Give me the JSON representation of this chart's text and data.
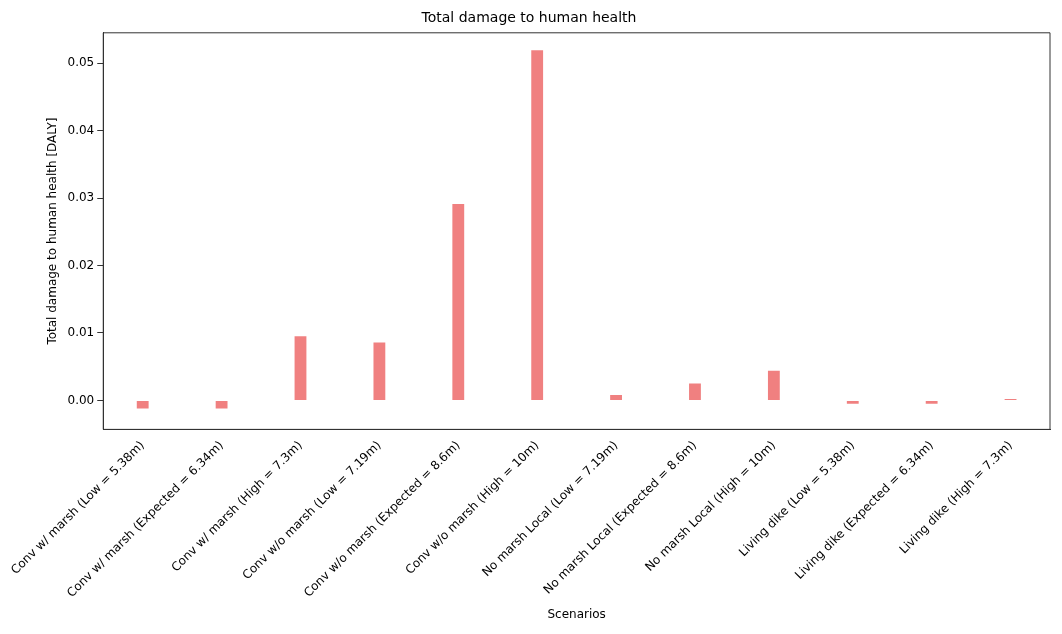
{
  "chart_data": {
    "type": "bar",
    "title": "Total damage to human health",
    "xlabel": "Scenarios",
    "ylabel": "Total damage to human health [DALY]",
    "categories": [
      "Conv w/ marsh (Low = 5.38m)",
      "Conv w/ marsh (Expected = 6.34m)",
      "Conv w/ marsh (High = 7.3m)",
      "Conv w/o marsh (Low = 7.19m)",
      "Conv w/o marsh (Expected = 8.6m)",
      "Conv w/o marsh (High = 10m)",
      "No marsh Local (Low = 7.19m)",
      "No marsh Local (Expected = 8.6m)",
      "No marsh Local (High = 10m)",
      "Living dike (Low = 5.38m)",
      "Living dike (Expected = 6.34m)",
      "Living dike (High = 7.3m)"
    ],
    "values": [
      -0.0012,
      -0.0012,
      0.0095,
      0.0086,
      0.0291,
      0.0519,
      0.0008,
      0.0025,
      0.0044,
      -0.0005,
      -0.0005,
      0.0002
    ],
    "color": "#f08080",
    "ylim": [
      -0.0043,
      0.0545
    ],
    "yticks": [
      {
        "value": 0,
        "label": "0.00"
      },
      {
        "value": 0.01,
        "label": "0.01"
      },
      {
        "value": 0.02,
        "label": "0.02"
      },
      {
        "value": 0.03,
        "label": "0.03"
      },
      {
        "value": 0.04,
        "label": "0.04"
      },
      {
        "value": 0.05,
        "label": "0.05"
      }
    ],
    "grid": false,
    "legend": false
  }
}
